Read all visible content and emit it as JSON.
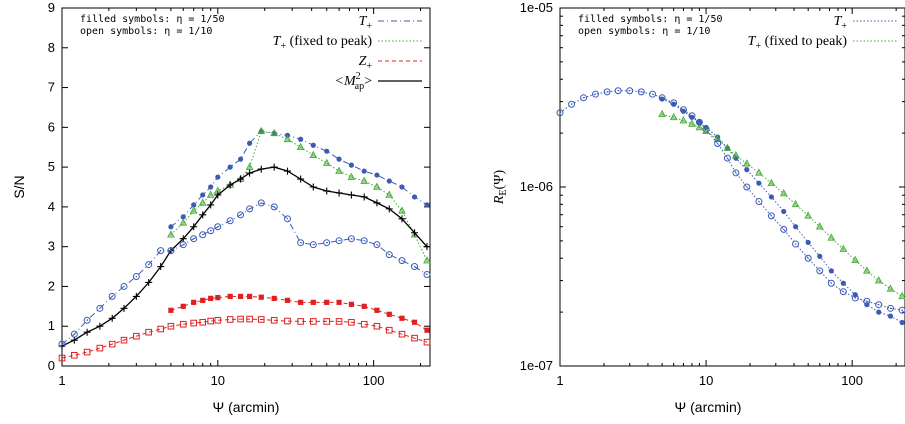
{
  "chart_data": [
    {
      "type": "line",
      "xscale": "log",
      "xlim": [
        1,
        230
      ],
      "ylim": [
        0,
        9
      ],
      "xlabel": "Ψ (arcmin)",
      "ylabel": "S/N",
      "xticks": [
        1,
        10,
        100
      ],
      "xtick_labels": [
        "1",
        "10",
        "100"
      ],
      "yticks": [
        0,
        1,
        2,
        3,
        4,
        5,
        6,
        7,
        8,
        9
      ],
      "ytick_labels": [
        "0",
        "1",
        "2",
        "3",
        "4",
        "5",
        "6",
        "7",
        "8",
        "9"
      ],
      "legend_position": "top",
      "notes": [
        "filled symbols: η = 1/50",
        "open symbols:  η = 1/10"
      ],
      "series": [
        {
          "name": "T+",
          "name_main": "T",
          "name_sub": "+",
          "color": "#3b5bb5",
          "style": "dashdot",
          "marker": "circle-filled",
          "x": [
            5,
            6,
            7,
            8,
            9,
            10,
            12,
            14,
            16,
            19,
            23,
            28,
            34,
            41,
            50,
            60,
            72,
            87,
            105,
            126,
            152,
            183,
            220
          ],
          "y": [
            3.5,
            3.75,
            4.05,
            4.3,
            4.5,
            4.75,
            5.0,
            5.2,
            5.6,
            5.9,
            5.85,
            5.8,
            5.7,
            5.55,
            5.4,
            5.2,
            5.05,
            4.9,
            4.8,
            4.65,
            4.5,
            4.25,
            4.05
          ]
        },
        {
          "name": "T+ (fixed to peak)",
          "name_main": "T",
          "name_sub": "+",
          "name_suffix": " (fixed to peak)",
          "color": "#44aa33",
          "style": "dotted",
          "marker": "triangle",
          "x": [
            5,
            6,
            7,
            8,
            9,
            10,
            12,
            14,
            16,
            19,
            23,
            28,
            34,
            41,
            50,
            60,
            72,
            87,
            105,
            126,
            152,
            183,
            220
          ],
          "y": [
            3.3,
            3.6,
            3.9,
            4.1,
            4.3,
            4.4,
            4.55,
            4.7,
            5.0,
            5.9,
            5.85,
            5.7,
            5.5,
            5.3,
            5.1,
            4.9,
            4.75,
            4.65,
            4.5,
            4.3,
            3.9,
            3.3,
            2.65
          ]
        },
        {
          "name": "Z+",
          "name_main": "Z",
          "name_sub": "+",
          "color": "#e02020",
          "style": "dashed",
          "marker": "square-filled",
          "x": [
            5,
            6,
            7,
            8,
            9,
            10,
            12,
            14,
            16,
            19,
            23,
            28,
            34,
            41,
            50,
            60,
            72,
            87,
            105,
            126,
            152,
            183,
            220
          ],
          "y": [
            1.4,
            1.5,
            1.6,
            1.65,
            1.7,
            1.72,
            1.75,
            1.75,
            1.75,
            1.73,
            1.7,
            1.65,
            1.6,
            1.6,
            1.6,
            1.6,
            1.55,
            1.5,
            1.4,
            1.3,
            1.2,
            1.1,
            0.9
          ]
        },
        {
          "name": "<M_ap^2>",
          "name_main": "<M",
          "name_sup": "2",
          "name_sub": "ap",
          "name_suffix": ">",
          "color": "#000000",
          "style": "solid",
          "marker": "plus",
          "x": [
            1,
            1.2,
            1.45,
            1.75,
            2.1,
            2.5,
            3.0,
            3.6,
            4.3,
            5,
            6,
            7,
            8,
            9,
            10,
            12,
            14,
            16,
            19,
            23,
            28,
            34,
            41,
            50,
            60,
            72,
            87,
            105,
            126,
            152,
            183,
            220
          ],
          "y": [
            0.5,
            0.65,
            0.85,
            1.0,
            1.2,
            1.45,
            1.75,
            2.1,
            2.5,
            2.9,
            3.2,
            3.5,
            3.8,
            4.05,
            4.3,
            4.55,
            4.7,
            4.85,
            4.95,
            5.0,
            4.9,
            4.7,
            4.5,
            4.4,
            4.35,
            4.3,
            4.25,
            4.1,
            3.95,
            3.7,
            3.35,
            3.0
          ]
        },
        {
          "name": "",
          "color": "#3b5bb5",
          "style": "dashdot",
          "marker": "circle-open",
          "x": [
            1,
            1.2,
            1.45,
            1.75,
            2.1,
            2.5,
            3.0,
            3.6,
            4.3,
            5,
            6,
            7,
            8,
            9,
            10,
            12,
            14,
            16,
            19,
            23,
            28,
            34,
            41,
            50,
            60,
            72,
            87,
            105,
            126,
            152,
            183,
            220
          ],
          "y": [
            0.55,
            0.8,
            1.15,
            1.45,
            1.75,
            2.0,
            2.25,
            2.55,
            2.9,
            2.9,
            3.05,
            3.2,
            3.3,
            3.4,
            3.5,
            3.65,
            3.8,
            3.95,
            4.1,
            4.0,
            3.7,
            3.1,
            3.05,
            3.1,
            3.15,
            3.2,
            3.15,
            3.05,
            2.8,
            2.65,
            2.5,
            2.3
          ]
        },
        {
          "name": "",
          "color": "#e02020",
          "style": "dashed",
          "marker": "square-open",
          "x": [
            1,
            1.2,
            1.45,
            1.75,
            2.1,
            2.5,
            3.0,
            3.6,
            4.3,
            5,
            6,
            7,
            8,
            9,
            10,
            12,
            14,
            16,
            19,
            23,
            28,
            34,
            41,
            50,
            60,
            72,
            87,
            105,
            126,
            152,
            183,
            220
          ],
          "y": [
            0.2,
            0.27,
            0.35,
            0.45,
            0.55,
            0.65,
            0.75,
            0.85,
            0.93,
            1.0,
            1.05,
            1.08,
            1.1,
            1.13,
            1.15,
            1.17,
            1.18,
            1.18,
            1.17,
            1.15,
            1.13,
            1.12,
            1.12,
            1.12,
            1.12,
            1.1,
            1.05,
            1.0,
            0.9,
            0.8,
            0.7,
            0.6
          ]
        }
      ]
    },
    {
      "type": "line",
      "xscale": "log",
      "yscale": "log",
      "xlim": [
        1,
        230
      ],
      "ylim": [
        1e-07,
        1e-05
      ],
      "xlabel": "Ψ (arcmin)",
      "ylabel": "R_E(Ψ)",
      "ylabel_main": "R",
      "ylabel_sub": "E",
      "ylabel_suffix": "(Ψ)",
      "xticks": [
        1,
        10,
        100
      ],
      "xtick_labels": [
        "1",
        "10",
        "100"
      ],
      "yticks": [
        1e-07,
        1e-06,
        1e-05
      ],
      "ytick_labels": [
        "1e-07",
        "1e-06",
        "1e-05"
      ],
      "legend_position": "top",
      "notes": [
        "filled symbols: η = 1/50",
        "open symbols:  η = 1/10"
      ],
      "series": [
        {
          "name": "T+",
          "name_main": "T",
          "name_sub": "+",
          "color": "#3b5bb5",
          "style": "dotted",
          "marker": "circle-filled",
          "x": [
            5,
            6,
            7,
            8,
            9,
            10,
            12,
            14,
            16,
            19,
            23,
            28,
            34,
            41,
            50,
            60,
            72,
            87,
            105,
            126,
            152,
            183,
            220
          ],
          "y": [
            3.1e-06,
            2.9e-06,
            2.65e-06,
            2.45e-06,
            2.3e-06,
            2.15e-06,
            1.9e-06,
            1.65e-06,
            1.45e-06,
            1.25e-06,
            1.05e-06,
            8.8e-07,
            7.3e-07,
            6e-07,
            4.9e-07,
            4.1e-07,
            3.4e-07,
            2.9e-07,
            2.5e-07,
            2.2e-07,
            2e-07,
            1.9e-07,
            1.75e-07
          ]
        },
        {
          "name": "T+ (fixed to peak)",
          "name_main": "T",
          "name_sub": "+",
          "name_suffix": " (fixed to peak)",
          "color": "#44aa33",
          "style": "dotted",
          "marker": "triangle",
          "x": [
            5,
            6,
            7,
            8,
            9,
            10,
            12,
            14,
            16,
            19,
            23,
            28,
            34,
            41,
            50,
            60,
            72,
            87,
            105,
            126,
            152,
            183,
            220
          ],
          "y": [
            2.55e-06,
            2.45e-06,
            2.35e-06,
            2.25e-06,
            2.15e-06,
            2.05e-06,
            1.85e-06,
            1.65e-06,
            1.5e-06,
            1.35e-06,
            1.2e-06,
            1.05e-06,
            9.2e-07,
            8e-07,
            6.9e-07,
            6e-07,
            5.2e-07,
            4.5e-07,
            3.9e-07,
            3.4e-07,
            3e-07,
            2.7e-07,
            2.45e-07
          ]
        },
        {
          "name": "",
          "color": "#3b5bb5",
          "style": "dotted",
          "marker": "circle-open",
          "x": [
            1,
            1.2,
            1.45,
            1.75,
            2.1,
            2.5,
            3.0,
            3.6,
            4.3,
            5,
            6,
            7,
            8,
            9,
            10,
            12,
            14,
            16,
            19,
            23,
            28,
            34,
            41,
            50,
            60,
            72,
            87,
            105,
            126,
            152,
            183,
            220
          ],
          "y": [
            2.6e-06,
            2.9e-06,
            3.15e-06,
            3.3e-06,
            3.4e-06,
            3.45e-06,
            3.45e-06,
            3.4e-06,
            3.3e-06,
            3.15e-06,
            2.95e-06,
            2.7e-06,
            2.5e-06,
            2.3e-06,
            2.1e-06,
            1.75e-06,
            1.45e-06,
            1.2e-06,
            1e-06,
            8.3e-07,
            6.9e-07,
            5.8e-07,
            4.8e-07,
            4e-07,
            3.4e-07,
            2.9e-07,
            2.6e-07,
            2.4e-07,
            2.3e-07,
            2.2e-07,
            2.1e-07,
            2.05e-07
          ]
        }
      ]
    }
  ]
}
